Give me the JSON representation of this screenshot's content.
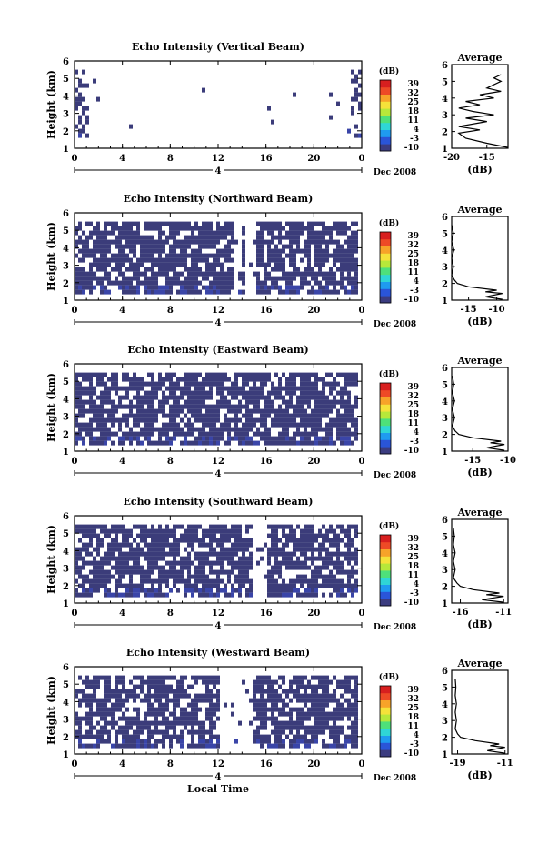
{
  "chart_data": [
    {
      "type": "heatmap",
      "title": "Echo Intensity (Vertical Beam)",
      "ylabel": "Height (km)",
      "x_ticks": [
        "0",
        "4",
        "8",
        "12",
        "16",
        "20",
        "0"
      ],
      "y_ticks": [
        "1",
        "2",
        "3",
        "4",
        "5",
        "6"
      ],
      "xlim": [
        0,
        24
      ],
      "ylim": [
        1,
        6
      ],
      "date_day": "4",
      "date_label": "Dec 2008",
      "colorbar": {
        "unit": "(dB)",
        "ticks": [
          "39",
          "32",
          "25",
          "18",
          "11",
          "4",
          "-3",
          "-10"
        ]
      },
      "data_range_km": [
        1.5,
        5.5
      ],
      "profile": {
        "title": "Average",
        "xlabel": "(dB)",
        "x_ticks": [
          "-20",
          "-15"
        ],
        "xlim": [
          -20,
          -12
        ],
        "heights": [
          1.05,
          1.3,
          1.6,
          1.9,
          2.1,
          2.3,
          2.6,
          2.8,
          3.0,
          3.2,
          3.4,
          3.6,
          3.8,
          4.0,
          4.2,
          4.4,
          4.6,
          4.8,
          5.0,
          5.2,
          5.4
        ],
        "values": [
          -12,
          -15,
          -18,
          -19,
          -16,
          -19,
          -15,
          -18,
          -14,
          -17,
          -19,
          -16,
          -18,
          -14,
          -16,
          -13,
          -15,
          -14,
          -13,
          -14,
          -13
        ]
      }
    },
    {
      "type": "heatmap",
      "title": "Echo Intensity (Northward Beam)",
      "ylabel": "Height (km)",
      "x_ticks": [
        "0",
        "4",
        "8",
        "12",
        "16",
        "20",
        "0"
      ],
      "y_ticks": [
        "1",
        "2",
        "3",
        "4",
        "5",
        "6"
      ],
      "xlim": [
        0,
        24
      ],
      "ylim": [
        1,
        6
      ],
      "date_day": "4",
      "date_label": "Dec 2008",
      "colorbar": {
        "unit": "(dB)",
        "ticks": [
          "39",
          "32",
          "25",
          "18",
          "11",
          "4",
          "-3",
          "-10"
        ]
      },
      "data_range_km": [
        1.4,
        5.5
      ],
      "profile": {
        "title": "Average",
        "xlabel": "(dB)",
        "x_ticks": [
          "-15",
          "-10"
        ],
        "xlim": [
          -18,
          -8
        ],
        "heights": [
          1.05,
          1.2,
          1.4,
          1.5,
          1.6,
          1.8,
          2.0,
          2.2,
          2.5,
          3.0,
          3.5,
          4.0,
          4.5,
          5.0,
          5.5
        ],
        "values": [
          -9,
          -12,
          -9,
          -12,
          -10,
          -15,
          -17,
          -17.5,
          -18,
          -17.7,
          -18,
          -17.6,
          -18,
          -17.7,
          -18
        ]
      }
    },
    {
      "type": "heatmap",
      "title": "Echo Intensity (Eastward Beam)",
      "ylabel": "Height (km)",
      "x_ticks": [
        "0",
        "4",
        "8",
        "12",
        "16",
        "20",
        "0"
      ],
      "y_ticks": [
        "1",
        "2",
        "3",
        "4",
        "5",
        "6"
      ],
      "xlim": [
        0,
        24
      ],
      "ylim": [
        1,
        6
      ],
      "date_day": "4",
      "date_label": "Dec 2008",
      "colorbar": {
        "unit": "(dB)",
        "ticks": [
          "39",
          "32",
          "25",
          "18",
          "11",
          "4",
          "-3",
          "-10"
        ]
      },
      "data_range_km": [
        1.4,
        5.5
      ],
      "profile": {
        "title": "Average",
        "xlabel": "(dB)",
        "x_ticks": [
          "-15",
          "-10"
        ],
        "xlim": [
          -18,
          -10
        ],
        "heights": [
          1.05,
          1.2,
          1.4,
          1.5,
          1.6,
          1.8,
          2.0,
          2.2,
          2.5,
          3.0,
          3.5,
          4.0,
          4.5,
          5.0,
          5.5
        ],
        "values": [
          -10.5,
          -13,
          -10.5,
          -12.5,
          -11,
          -15,
          -17,
          -17.5,
          -17.9,
          -17.6,
          -17.9,
          -17.6,
          -17.9,
          -17.7,
          -17.9
        ]
      }
    },
    {
      "type": "heatmap",
      "title": "Echo Intensity (Southward Beam)",
      "ylabel": "Height (km)",
      "x_ticks": [
        "0",
        "4",
        "8",
        "12",
        "16",
        "20",
        "0"
      ],
      "y_ticks": [
        "1",
        "2",
        "3",
        "4",
        "5",
        "6"
      ],
      "xlim": [
        0,
        24
      ],
      "ylim": [
        1,
        6
      ],
      "date_day": "4",
      "date_label": "Dec 2008",
      "colorbar": {
        "unit": "(dB)",
        "ticks": [
          "39",
          "32",
          "25",
          "18",
          "11",
          "4",
          "-3",
          "-10"
        ]
      },
      "data_range_km": [
        1.4,
        5.5
      ],
      "profile": {
        "title": "Average",
        "xlabel": "(dB)",
        "x_ticks": [
          "-16",
          "-11"
        ],
        "xlim": [
          -17,
          -10.5
        ],
        "heights": [
          1.05,
          1.2,
          1.4,
          1.5,
          1.6,
          1.8,
          2.0,
          2.2,
          2.5,
          3.0,
          3.5,
          4.0,
          4.5,
          5.0,
          5.5
        ],
        "values": [
          -11,
          -13.5,
          -11,
          -13,
          -11.5,
          -14.5,
          -16,
          -16.4,
          -16.8,
          -16.6,
          -16.8,
          -16.6,
          -16.8,
          -16.7,
          -16.8
        ]
      }
    },
    {
      "type": "heatmap",
      "title": "Echo Intensity (Westward Beam)",
      "ylabel": "Height (km)",
      "xlabel": "Local Time",
      "x_ticks": [
        "0",
        "4",
        "8",
        "12",
        "16",
        "20",
        "0"
      ],
      "y_ticks": [
        "1",
        "2",
        "3",
        "4",
        "5",
        "6"
      ],
      "xlim": [
        0,
        24
      ],
      "ylim": [
        1,
        6
      ],
      "date_day": "4",
      "date_label": "Dec 2008",
      "colorbar": {
        "unit": "(dB)",
        "ticks": [
          "39",
          "32",
          "25",
          "18",
          "11",
          "4",
          "-3",
          "-10"
        ]
      },
      "data_range_km": [
        1.4,
        5.5
      ],
      "profile": {
        "title": "Average",
        "xlabel": "(dB)",
        "x_ticks": [
          "-19",
          "-11"
        ],
        "xlim": [
          -20,
          -10.5
        ],
        "heights": [
          1.05,
          1.2,
          1.4,
          1.5,
          1.6,
          1.8,
          2.0,
          2.2,
          2.5,
          3.0,
          3.5,
          4.0,
          4.5,
          5.0,
          5.5
        ],
        "values": [
          -11,
          -14,
          -11,
          -13.5,
          -12,
          -16,
          -18.5,
          -19,
          -19.4,
          -19.2,
          -19.4,
          -19.2,
          -19.4,
          -19.3,
          -19.4
        ]
      }
    }
  ]
}
